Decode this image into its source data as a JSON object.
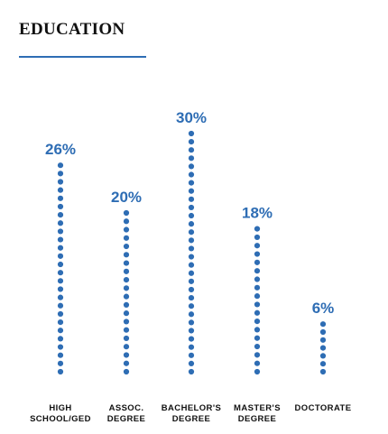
{
  "header": {
    "title": "EDUCATION"
  },
  "colors": {
    "accent": "#2e6db4",
    "text": "#111111"
  },
  "chart_data": {
    "type": "bar",
    "style": "dotted-columns",
    "title": "EDUCATION",
    "categories": [
      [
        "HIGH",
        "SCHOOL/GED"
      ],
      [
        "ASSOC.",
        "DEGREE"
      ],
      [
        "BACHELOR'S",
        "DEGREE"
      ],
      [
        "MASTER'S",
        "DEGREE"
      ],
      [
        "DOCTORATE"
      ]
    ],
    "values": [
      26,
      20,
      30,
      18,
      6
    ],
    "value_labels": [
      "26%",
      "20%",
      "30%",
      "18%",
      "6%"
    ],
    "unit": "%",
    "ylim": [
      0,
      30
    ],
    "grid": false,
    "legend": "none"
  }
}
